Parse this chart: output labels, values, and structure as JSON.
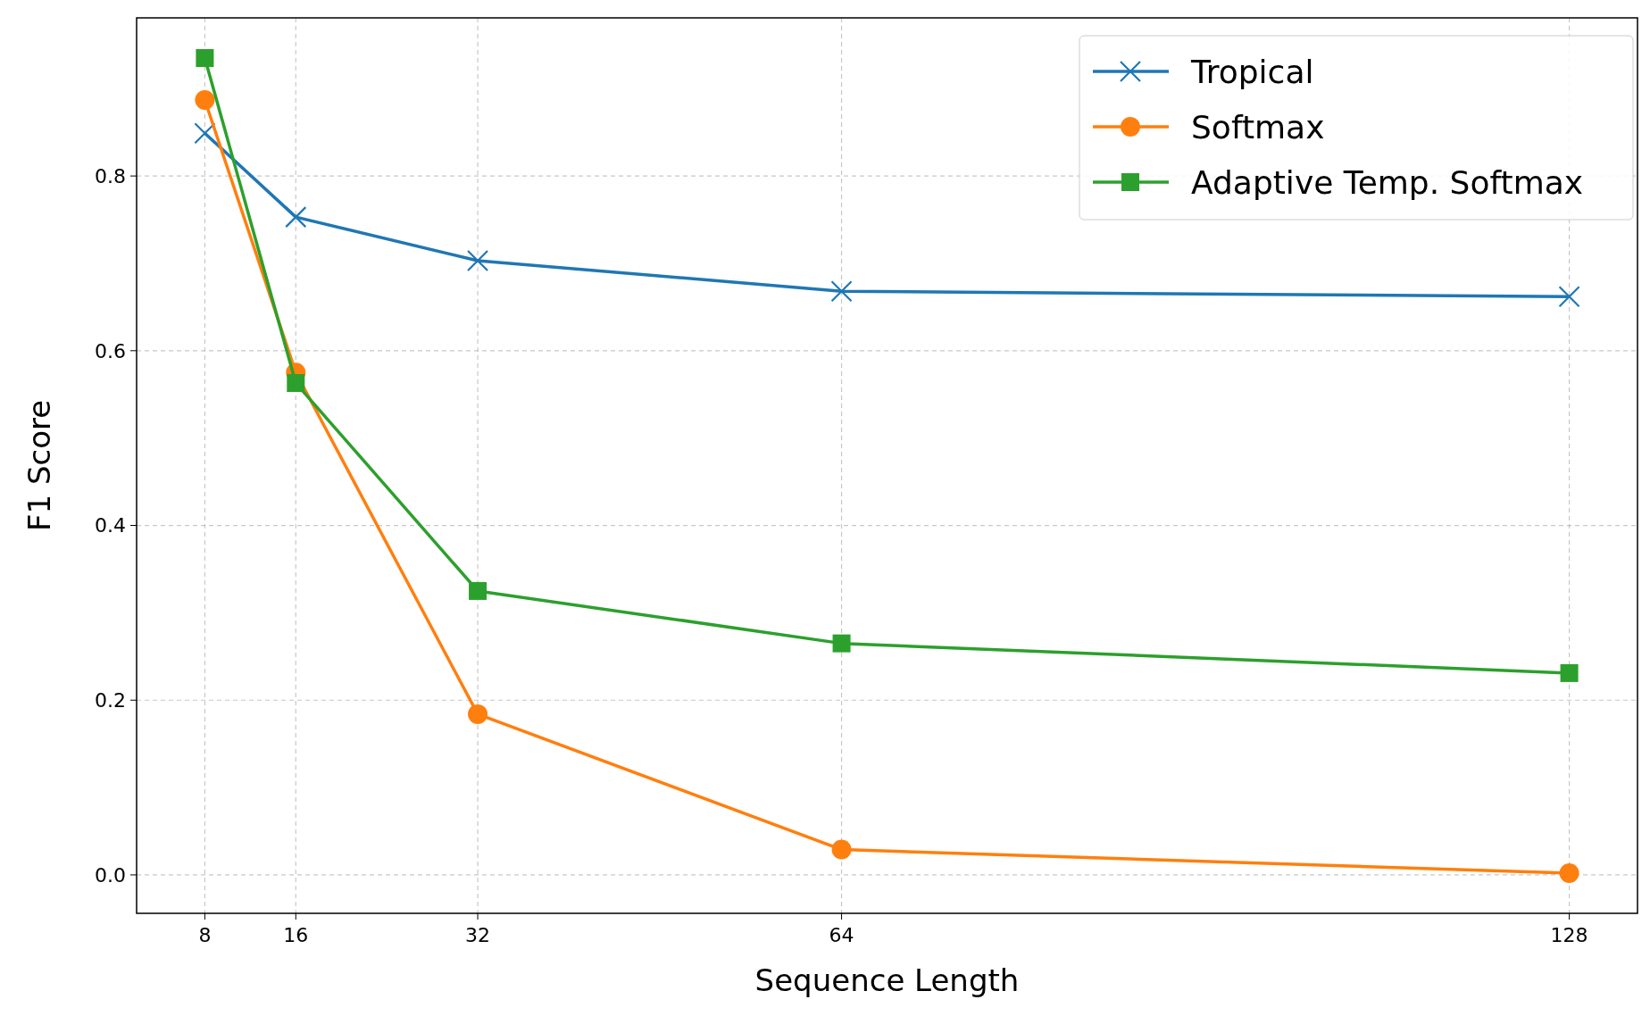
{
  "chart_data": {
    "type": "line",
    "xlabel": "Sequence Length",
    "ylabel": "F1 Score",
    "x": [
      8,
      16,
      32,
      64,
      128
    ],
    "xlim": [
      2,
      134
    ],
    "xticks": [
      8,
      16,
      32,
      64,
      128
    ],
    "ylim": [
      -0.044,
      0.981
    ],
    "yticks": [
      {
        "value": 0,
        "label": "0.0"
      },
      {
        "value": 0.2,
        "label": "0.2"
      },
      {
        "value": 0.4,
        "label": "0.4"
      },
      {
        "value": 0.6,
        "label": "0.6"
      },
      {
        "value": 0.8,
        "label": "0.8"
      }
    ],
    "grid": true,
    "legend": "top right",
    "line_style": "solid",
    "series": [
      {
        "name": "Tropical",
        "color": "#1f77b4",
        "marker": "cross",
        "values": [
          0.849,
          0.753,
          0.703,
          0.668,
          0.662
        ]
      },
      {
        "name": "Softmax",
        "color": "#ff7f0e",
        "marker": "circle",
        "values": [
          0.887,
          0.575,
          0.184,
          0.029,
          0.002
        ]
      },
      {
        "name": "Adaptive Temp. Softmax",
        "color": "#2ca02c",
        "marker": "square",
        "values": [
          0.935,
          0.563,
          0.325,
          0.265,
          0.231
        ]
      }
    ]
  }
}
